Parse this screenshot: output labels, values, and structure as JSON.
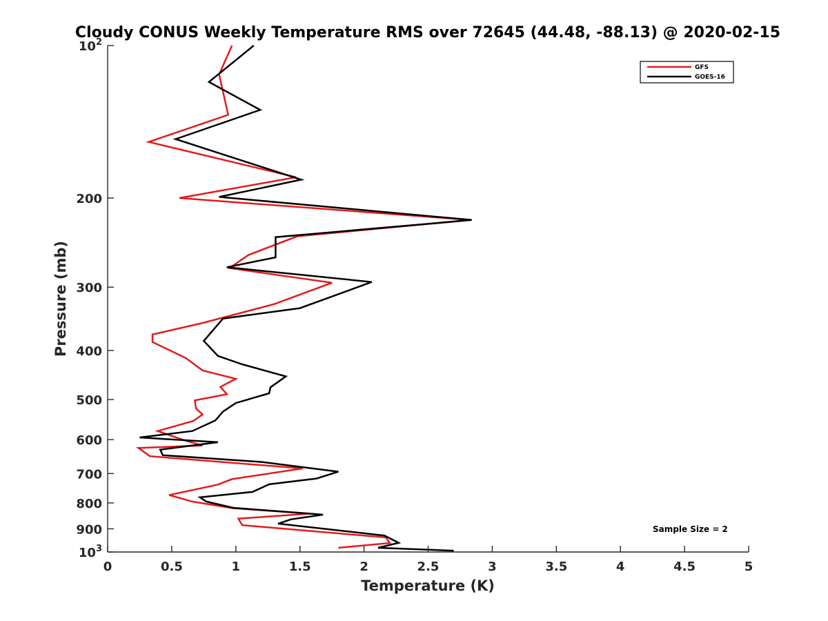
{
  "chart_data": {
    "type": "line",
    "title": "Cloudy CONUS Weekly Temperature RMS over 72645 (44.48, -88.13) @ 2020-02-15",
    "xlabel": "Temperature (K)",
    "ylabel": "Pressure (mb)",
    "xlim": [
      0,
      5
    ],
    "ylim": [
      100,
      1000
    ],
    "y_scale": "log",
    "y_direction": "reversed",
    "grid": false,
    "legend_position": "top-right",
    "x_ticks": [
      "0",
      "0.5",
      "1",
      "1.5",
      "2",
      "2.5",
      "3",
      "3.5",
      "4",
      "4.5",
      "5"
    ],
    "y_ticks": [
      {
        "value": 100,
        "base": "10",
        "exp": "2"
      },
      {
        "value": 200,
        "base": "200",
        "exp": ""
      },
      {
        "value": 300,
        "base": "300",
        "exp": ""
      },
      {
        "value": 400,
        "base": "400",
        "exp": ""
      },
      {
        "value": 500,
        "base": "500",
        "exp": ""
      },
      {
        "value": 600,
        "base": "600",
        "exp": ""
      },
      {
        "value": 700,
        "base": "700",
        "exp": ""
      },
      {
        "value": 800,
        "base": "800",
        "exp": ""
      },
      {
        "value": 900,
        "base": "900",
        "exp": ""
      },
      {
        "value": 1000,
        "base": "10",
        "exp": "3"
      }
    ],
    "series": [
      {
        "name": "GFS",
        "color": "#e41a1c",
        "points": [
          [
            0.97,
            100
          ],
          [
            0.87,
            114
          ],
          [
            0.94,
            137
          ],
          [
            0.32,
            155
          ],
          [
            1.47,
            182
          ],
          [
            0.56,
            200
          ],
          [
            2.83,
            221
          ],
          [
            1.48,
            238
          ],
          [
            1.1,
            259
          ],
          [
            0.95,
            275
          ],
          [
            1.75,
            294
          ],
          [
            1.3,
            324
          ],
          [
            0.74,
            353
          ],
          [
            0.35,
            372
          ],
          [
            0.35,
            385
          ],
          [
            0.61,
            414
          ],
          [
            0.74,
            438
          ],
          [
            1.0,
            455
          ],
          [
            0.88,
            472
          ],
          [
            0.93,
            488
          ],
          [
            0.68,
            502
          ],
          [
            0.69,
            521
          ],
          [
            0.74,
            535
          ],
          [
            0.67,
            551
          ],
          [
            0.39,
            577
          ],
          [
            0.6,
            602
          ],
          [
            0.74,
            616
          ],
          [
            0.24,
            623
          ],
          [
            0.33,
            647
          ],
          [
            1.52,
            684
          ],
          [
            0.97,
            718
          ],
          [
            0.86,
            736
          ],
          [
            0.48,
            772
          ],
          [
            0.66,
            795
          ],
          [
            0.97,
            819
          ],
          [
            1.58,
            840
          ],
          [
            1.02,
            859
          ],
          [
            1.05,
            885
          ],
          [
            2.17,
            936
          ],
          [
            2.2,
            960
          ],
          [
            1.8,
            981
          ]
        ]
      },
      {
        "name": "GOES-16",
        "color": "#000000",
        "points": [
          [
            1.14,
            100
          ],
          [
            0.79,
            118
          ],
          [
            1.19,
            134
          ],
          [
            0.53,
            153
          ],
          [
            1.51,
            184
          ],
          [
            0.87,
            199
          ],
          [
            2.84,
            221
          ],
          [
            1.31,
            239
          ],
          [
            1.31,
            262
          ],
          [
            0.93,
            274
          ],
          [
            2.06,
            293
          ],
          [
            1.5,
            330
          ],
          [
            0.9,
            346
          ],
          [
            0.75,
            383
          ],
          [
            0.86,
            410
          ],
          [
            1.05,
            426
          ],
          [
            1.39,
            450
          ],
          [
            1.27,
            473
          ],
          [
            1.26,
            486
          ],
          [
            1.0,
            508
          ],
          [
            0.9,
            528
          ],
          [
            0.84,
            550
          ],
          [
            0.66,
            577
          ],
          [
            0.25,
            594
          ],
          [
            0.86,
            607
          ],
          [
            0.41,
            628
          ],
          [
            0.43,
            644
          ],
          [
            1.2,
            664
          ],
          [
            1.8,
            694
          ],
          [
            1.63,
            716
          ],
          [
            1.26,
            735
          ],
          [
            1.13,
            761
          ],
          [
            0.72,
            780
          ],
          [
            0.77,
            795
          ],
          [
            0.98,
            818
          ],
          [
            1.68,
            844
          ],
          [
            1.43,
            862
          ],
          [
            1.33,
            879
          ],
          [
            2.16,
            928
          ],
          [
            2.27,
            959
          ],
          [
            2.11,
            981
          ],
          [
            2.7,
            994
          ]
        ]
      }
    ],
    "annotation": "Sample Size = 2"
  }
}
